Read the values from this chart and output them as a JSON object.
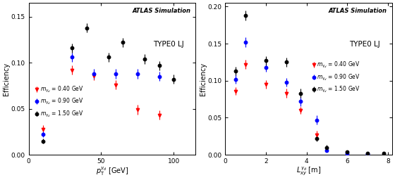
{
  "left": {
    "title": "TYPE0 LJ",
    "atlas_text": "ATLAS Simulation",
    "xlabel": "$p_{\\mathrm{T}}^{\\gamma_d}$ [GeV]",
    "ylabel": "Efficiency",
    "xlim": [
      0,
      115
    ],
    "ylim": [
      0,
      0.165
    ],
    "yticks": [
      0,
      0.05,
      0.1,
      0.15
    ],
    "xticks": [
      0,
      50,
      100
    ],
    "red": {
      "label": "$m_{\\gamma_d}$ = 0.40 GeV",
      "x": [
        10,
        30,
        45,
        60,
        75,
        90
      ],
      "y": [
        0.028,
        0.092,
        0.086,
        0.076,
        0.049,
        0.043
      ],
      "yerr": [
        0.004,
        0.005,
        0.005,
        0.005,
        0.005,
        0.005
      ]
    },
    "blue": {
      "label": "$m_{\\gamma_d}$ = 0.90 GeV",
      "x": [
        10,
        30,
        45,
        60,
        75,
        90
      ],
      "y": [
        0.022,
        0.106,
        0.088,
        0.088,
        0.088,
        0.085
      ],
      "yerr": [
        0.003,
        0.005,
        0.005,
        0.005,
        0.005,
        0.005
      ]
    },
    "black": {
      "label": "$m_{\\gamma_d}$ = 1.50 GeV",
      "x": [
        10,
        30,
        40,
        55,
        65,
        80,
        90,
        100
      ],
      "y": [
        0.015,
        0.116,
        0.138,
        0.106,
        0.122,
        0.104,
        0.097,
        0.082
      ],
      "yerr": [
        0.003,
        0.005,
        0.005,
        0.005,
        0.005,
        0.005,
        0.005,
        0.005
      ]
    }
  },
  "right": {
    "title": "TYPE0 LJ",
    "atlas_text": "ATLAS Simulation",
    "xlabel": "$L_{xy}^{\\gamma_d}$ [m]",
    "ylabel": "Efficiency",
    "xlim": [
      0,
      8.2
    ],
    "ylim": [
      0,
      0.205
    ],
    "yticks": [
      0,
      0.05,
      0.1,
      0.15,
      0.2
    ],
    "xticks": [
      0,
      2,
      4,
      6,
      8
    ],
    "red": {
      "label": "$m_{\\gamma_d}$ = 0.40 GeV",
      "x": [
        0.5,
        1.0,
        2.0,
        3.0,
        3.7,
        4.5
      ],
      "y": [
        0.086,
        0.122,
        0.095,
        0.083,
        0.06,
        0.027
      ],
      "yerr": [
        0.005,
        0.006,
        0.006,
        0.006,
        0.005,
        0.005
      ]
    },
    "blue": {
      "label": "$m_{\\gamma_d}$ = 0.90 GeV",
      "x": [
        0.5,
        1.0,
        2.0,
        3.0,
        3.7,
        4.5,
        5.0,
        6.0,
        7.0
      ],
      "y": [
        0.102,
        0.152,
        0.118,
        0.098,
        0.072,
        0.047,
        0.006,
        0.002,
        0.001
      ],
      "yerr": [
        0.006,
        0.007,
        0.006,
        0.006,
        0.006,
        0.006,
        0.002,
        0.001,
        0.001
      ]
    },
    "black": {
      "label": "$m_{\\gamma_d}$ = 1.50 GeV",
      "x": [
        0.5,
        1.0,
        2.0,
        3.0,
        3.7,
        4.5,
        5.0,
        6.0,
        7.0,
        7.8
      ],
      "y": [
        0.113,
        0.188,
        0.127,
        0.125,
        0.083,
        0.022,
        0.01,
        0.004,
        0.002,
        0.002
      ],
      "yerr": [
        0.006,
        0.007,
        0.006,
        0.006,
        0.006,
        0.004,
        0.003,
        0.002,
        0.001,
        0.001
      ]
    }
  }
}
